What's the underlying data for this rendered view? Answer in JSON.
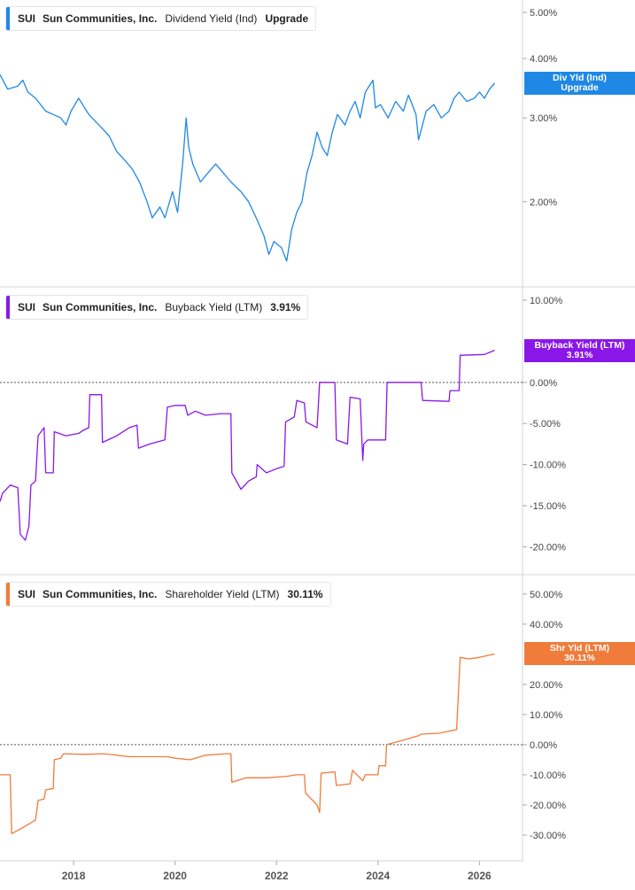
{
  "colors": {
    "dividend": "#1f88e5",
    "buyback": "#8a17e8",
    "shareholder": "#f07b3a",
    "grid": "#d6d9de",
    "text": "#444444"
  },
  "chart_data": [
    {
      "type": "line",
      "legend": {
        "ticker": "SUI",
        "company": "Sun Communities, Inc.",
        "metric": "Dividend Yield (Ind)",
        "value": "Upgrade"
      },
      "tag": {
        "line1": "Div Yld (Ind)",
        "line2": "Upgrade"
      },
      "ylim": [
        1.4,
        5.0
      ],
      "y_ticks": [
        {
          "v": 2.0,
          "label": "2.00%"
        },
        {
          "v": 3.0,
          "label": "3.00%"
        },
        {
          "v": 4.0,
          "label": "4.00%"
        },
        {
          "v": 5.0,
          "label": "5.00%"
        }
      ],
      "scale": "log",
      "tag_value": 3.55,
      "series": [
        {
          "points": [
            [
              2016.55,
              3.7
            ],
            [
              2016.7,
              3.45
            ],
            [
              2016.9,
              3.5
            ],
            [
              2017.0,
              3.6
            ],
            [
              2017.1,
              3.4
            ],
            [
              2017.25,
              3.3
            ],
            [
              2017.45,
              3.1
            ],
            [
              2017.6,
              3.05
            ],
            [
              2017.75,
              3.0
            ],
            [
              2017.85,
              2.9
            ],
            [
              2017.95,
              3.1
            ],
            [
              2018.1,
              3.3
            ],
            [
              2018.3,
              3.05
            ],
            [
              2018.5,
              2.9
            ],
            [
              2018.7,
              2.75
            ],
            [
              2018.85,
              2.55
            ],
            [
              2019.0,
              2.45
            ],
            [
              2019.15,
              2.35
            ],
            [
              2019.3,
              2.2
            ],
            [
              2019.45,
              2.0
            ],
            [
              2019.55,
              1.85
            ],
            [
              2019.7,
              1.95
            ],
            [
              2019.8,
              1.85
            ],
            [
              2019.95,
              2.1
            ],
            [
              2020.05,
              1.9
            ],
            [
              2020.15,
              2.4
            ],
            [
              2020.22,
              3.0
            ],
            [
              2020.27,
              2.6
            ],
            [
              2020.35,
              2.4
            ],
            [
              2020.5,
              2.2
            ],
            [
              2020.65,
              2.3
            ],
            [
              2020.8,
              2.4
            ],
            [
              2020.95,
              2.3
            ],
            [
              2021.1,
              2.2
            ],
            [
              2021.3,
              2.1
            ],
            [
              2021.45,
              2.0
            ],
            [
              2021.6,
              1.85
            ],
            [
              2021.75,
              1.7
            ],
            [
              2021.85,
              1.55
            ],
            [
              2021.95,
              1.65
            ],
            [
              2022.1,
              1.6
            ],
            [
              2022.2,
              1.5
            ],
            [
              2022.3,
              1.75
            ],
            [
              2022.4,
              1.9
            ],
            [
              2022.5,
              2.0
            ],
            [
              2022.6,
              2.3
            ],
            [
              2022.7,
              2.5
            ],
            [
              2022.8,
              2.8
            ],
            [
              2022.9,
              2.6
            ],
            [
              2023.0,
              2.5
            ],
            [
              2023.1,
              2.8
            ],
            [
              2023.2,
              3.05
            ],
            [
              2023.35,
              2.9
            ],
            [
              2023.45,
              3.1
            ],
            [
              2023.55,
              3.25
            ],
            [
              2023.65,
              3.0
            ],
            [
              2023.75,
              3.4
            ],
            [
              2023.9,
              3.6
            ],
            [
              2023.95,
              3.15
            ],
            [
              2024.05,
              3.2
            ],
            [
              2024.2,
              3.0
            ],
            [
              2024.35,
              3.25
            ],
            [
              2024.5,
              3.1
            ],
            [
              2024.6,
              3.35
            ],
            [
              2024.75,
              3.05
            ],
            [
              2024.8,
              2.7
            ],
            [
              2024.95,
              3.1
            ],
            [
              2025.1,
              3.2
            ],
            [
              2025.25,
              3.0
            ],
            [
              2025.4,
              3.1
            ],
            [
              2025.5,
              3.3
            ],
            [
              2025.6,
              3.4
            ],
            [
              2025.75,
              3.25
            ],
            [
              2025.9,
              3.3
            ],
            [
              2026.0,
              3.4
            ],
            [
              2026.1,
              3.3
            ],
            [
              2026.2,
              3.45
            ],
            [
              2026.3,
              3.55
            ]
          ]
        }
      ]
    },
    {
      "type": "line",
      "legend": {
        "ticker": "SUI",
        "company": "Sun Communities, Inc.",
        "metric": "Buyback Yield (LTM)",
        "value": "3.91%"
      },
      "tag": {
        "line1": "Buyback Yield (LTM)",
        "line2": "3.91%"
      },
      "ylim": [
        -22,
        10
      ],
      "y_ticks": [
        {
          "v": 10,
          "label": "10.00%"
        },
        {
          "v": 0,
          "label": "0.00%"
        },
        {
          "v": -5,
          "label": "-5.00%"
        },
        {
          "v": -10,
          "label": "-10.00%"
        },
        {
          "v": -15,
          "label": "-15.00%"
        },
        {
          "v": -20,
          "label": "-20.00%"
        }
      ],
      "zero_line": true,
      "tag_value": 3.91,
      "series": [
        {
          "points": [
            [
              2016.55,
              -14.5
            ],
            [
              2016.6,
              -13.5
            ],
            [
              2016.75,
              -12.5
            ],
            [
              2016.9,
              -12.8
            ],
            [
              2016.95,
              -18.5
            ],
            [
              2017.05,
              -19.2
            ],
            [
              2017.12,
              -17.5
            ],
            [
              2017.16,
              -12.5
            ],
            [
              2017.25,
              -12.0
            ],
            [
              2017.3,
              -6.5
            ],
            [
              2017.42,
              -5.5
            ],
            [
              2017.45,
              -11.0
            ],
            [
              2017.6,
              -11.0
            ],
            [
              2017.62,
              -6.0
            ],
            [
              2017.85,
              -6.5
            ],
            [
              2018.1,
              -6.2
            ],
            [
              2018.2,
              -5.8
            ],
            [
              2018.3,
              -5.5
            ],
            [
              2018.32,
              -1.5
            ],
            [
              2018.55,
              -1.5
            ],
            [
              2018.57,
              -7.3
            ],
            [
              2018.85,
              -6.5
            ],
            [
              2019.1,
              -5.5
            ],
            [
              2019.25,
              -5.2
            ],
            [
              2019.28,
              -8.0
            ],
            [
              2019.5,
              -7.5
            ],
            [
              2019.8,
              -7.0
            ],
            [
              2019.85,
              -3.0
            ],
            [
              2020.0,
              -2.8
            ],
            [
              2020.2,
              -2.8
            ],
            [
              2020.25,
              -4.0
            ],
            [
              2020.4,
              -3.5
            ],
            [
              2020.6,
              -4.0
            ],
            [
              2020.9,
              -3.8
            ],
            [
              2021.1,
              -3.8
            ],
            [
              2021.12,
              -11.0
            ],
            [
              2021.3,
              -13.0
            ],
            [
              2021.45,
              -12.0
            ],
            [
              2021.6,
              -11.5
            ],
            [
              2021.62,
              -10.0
            ],
            [
              2021.8,
              -11.0
            ],
            [
              2022.0,
              -10.5
            ],
            [
              2022.15,
              -10.2
            ],
            [
              2022.18,
              -4.8
            ],
            [
              2022.35,
              -4.2
            ],
            [
              2022.4,
              -2.2
            ],
            [
              2022.55,
              -2.5
            ],
            [
              2022.58,
              -4.8
            ],
            [
              2022.8,
              -5.5
            ],
            [
              2022.85,
              0.0
            ],
            [
              2023.15,
              0.0
            ],
            [
              2023.18,
              -7.0
            ],
            [
              2023.4,
              -7.5
            ],
            [
              2023.45,
              -1.8
            ],
            [
              2023.65,
              -2.0
            ],
            [
              2023.7,
              -9.5
            ],
            [
              2023.72,
              -7.5
            ],
            [
              2023.8,
              -7.0
            ],
            [
              2024.15,
              -7.0
            ],
            [
              2024.18,
              0.0
            ],
            [
              2024.85,
              0.0
            ],
            [
              2024.88,
              -2.2
            ],
            [
              2025.4,
              -2.3
            ],
            [
              2025.42,
              -1.0
            ],
            [
              2025.6,
              -1.0
            ],
            [
              2025.62,
              3.3
            ],
            [
              2026.1,
              3.4
            ],
            [
              2026.3,
              3.91
            ]
          ]
        }
      ]
    },
    {
      "type": "line",
      "legend": {
        "ticker": "SUI",
        "company": "Sun Communities, Inc.",
        "metric": "Shareholder Yield (LTM)",
        "value": "30.11%"
      },
      "tag": {
        "line1": "Shr Yld (LTM)",
        "line2": "30.11%"
      },
      "ylim": [
        -35,
        52
      ],
      "y_ticks": [
        {
          "v": 50,
          "label": "50.00%"
        },
        {
          "v": 40,
          "label": "40.00%"
        },
        {
          "v": 20,
          "label": "20.00%"
        },
        {
          "v": 10,
          "label": "10.00%"
        },
        {
          "v": 0,
          "label": "0.00%"
        },
        {
          "v": -10,
          "label": "-10.00%"
        },
        {
          "v": -20,
          "label": "-20.00%"
        },
        {
          "v": -30,
          "label": "-30.00%"
        }
      ],
      "zero_line": true,
      "tag_value": 30.11,
      "series": [
        {
          "points": [
            [
              2016.55,
              -10.0
            ],
            [
              2016.75,
              -10.0
            ],
            [
              2016.78,
              -29.5
            ],
            [
              2016.95,
              -28.0
            ],
            [
              2017.1,
              -26.5
            ],
            [
              2017.25,
              -25.0
            ],
            [
              2017.3,
              -18.5
            ],
            [
              2017.42,
              -18.0
            ],
            [
              2017.45,
              -15.0
            ],
            [
              2017.6,
              -14.5
            ],
            [
              2017.62,
              -5.0
            ],
            [
              2017.75,
              -4.5
            ],
            [
              2017.8,
              -3.0
            ],
            [
              2018.2,
              -3.2
            ],
            [
              2018.6,
              -3.0
            ],
            [
              2018.85,
              -3.5
            ],
            [
              2019.1,
              -4.0
            ],
            [
              2019.5,
              -4.0
            ],
            [
              2019.85,
              -4.0
            ],
            [
              2020.0,
              -4.5
            ],
            [
              2020.3,
              -5.0
            ],
            [
              2020.6,
              -3.5
            ],
            [
              2021.0,
              -3.0
            ],
            [
              2021.1,
              -3.0
            ],
            [
              2021.12,
              -12.5
            ],
            [
              2021.4,
              -11.0
            ],
            [
              2021.8,
              -11.0
            ],
            [
              2022.2,
              -10.5
            ],
            [
              2022.4,
              -10.0
            ],
            [
              2022.55,
              -10.0
            ],
            [
              2022.57,
              -16.0
            ],
            [
              2022.8,
              -20.0
            ],
            [
              2022.85,
              -22.5
            ],
            [
              2022.88,
              -9.5
            ],
            [
              2023.15,
              -9.0
            ],
            [
              2023.18,
              -13.5
            ],
            [
              2023.45,
              -13.0
            ],
            [
              2023.5,
              -8.5
            ],
            [
              2023.7,
              -12.0
            ],
            [
              2023.75,
              -10.0
            ],
            [
              2024.0,
              -10.0
            ],
            [
              2024.02,
              -7.0
            ],
            [
              2024.15,
              -7.0
            ],
            [
              2024.17,
              0.0
            ],
            [
              2024.5,
              1.5
            ],
            [
              2024.8,
              3.0
            ],
            [
              2024.85,
              3.5
            ],
            [
              2025.2,
              3.8
            ],
            [
              2025.4,
              4.5
            ],
            [
              2025.55,
              5.0
            ],
            [
              2025.62,
              29.0
            ],
            [
              2025.8,
              28.5
            ],
            [
              2026.0,
              29.0
            ],
            [
              2026.3,
              30.11
            ]
          ]
        }
      ]
    }
  ],
  "x_axis": {
    "xlim": [
      2016.55,
      2026.5
    ],
    "ticks": [
      {
        "v": 2018,
        "label": "2018"
      },
      {
        "v": 2020,
        "label": "2020"
      },
      {
        "v": 2022,
        "label": "2022"
      },
      {
        "v": 2024,
        "label": "2024"
      },
      {
        "v": 2026,
        "label": "2026"
      }
    ]
  }
}
